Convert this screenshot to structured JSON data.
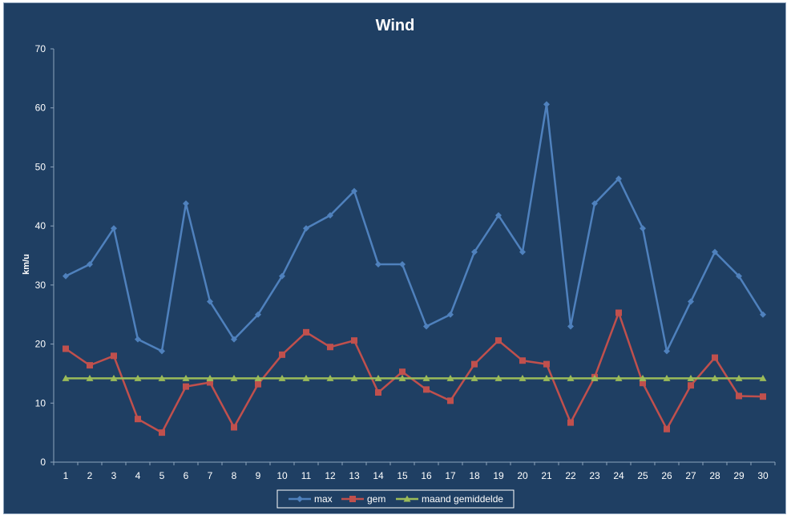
{
  "chart_data": {
    "type": "line",
    "title": "Wind",
    "xlabel": "",
    "ylabel": "km/u",
    "ylim": [
      0,
      70
    ],
    "yticks": [
      0,
      10,
      20,
      30,
      40,
      50,
      60,
      70
    ],
    "categories": [
      "1",
      "2",
      "3",
      "4",
      "5",
      "6",
      "7",
      "8",
      "9",
      "10",
      "11",
      "12",
      "13",
      "14",
      "15",
      "16",
      "17",
      "18",
      "19",
      "20",
      "21",
      "22",
      "23",
      "24",
      "25",
      "26",
      "27",
      "28",
      "29",
      "30"
    ],
    "grid": false,
    "legend_position": "bottom",
    "series": [
      {
        "name": "max",
        "color": "#4f81bd",
        "marker": "diamond",
        "values": [
          31.5,
          33.5,
          39.6,
          20.8,
          18.8,
          43.8,
          27.2,
          20.8,
          25.0,
          31.5,
          39.6,
          41.8,
          45.9,
          33.5,
          33.5,
          23.0,
          25.0,
          35.6,
          41.8,
          35.6,
          60.6,
          23.0,
          43.8,
          48.0,
          39.6,
          18.8,
          27.2,
          35.6,
          31.5,
          25.0
        ]
      },
      {
        "name": "gem",
        "color": "#c0504d",
        "marker": "square",
        "values": [
          19.2,
          16.4,
          18.0,
          7.3,
          5.0,
          12.8,
          13.5,
          5.9,
          13.2,
          18.2,
          22.0,
          19.5,
          20.6,
          11.8,
          15.3,
          12.3,
          10.4,
          16.6,
          20.6,
          17.2,
          16.6,
          6.7,
          14.4,
          25.3,
          13.4,
          5.6,
          13.0,
          17.7,
          11.2,
          11.1
        ]
      },
      {
        "name": "maand gemiddelde",
        "color": "#9bbb59",
        "marker": "triangle",
        "values": [
          14.2,
          14.2,
          14.2,
          14.2,
          14.2,
          14.2,
          14.2,
          14.2,
          14.2,
          14.2,
          14.2,
          14.2,
          14.2,
          14.2,
          14.2,
          14.2,
          14.2,
          14.2,
          14.2,
          14.2,
          14.2,
          14.2,
          14.2,
          14.2,
          14.2,
          14.2,
          14.2,
          14.2,
          14.2,
          14.2
        ]
      }
    ]
  }
}
